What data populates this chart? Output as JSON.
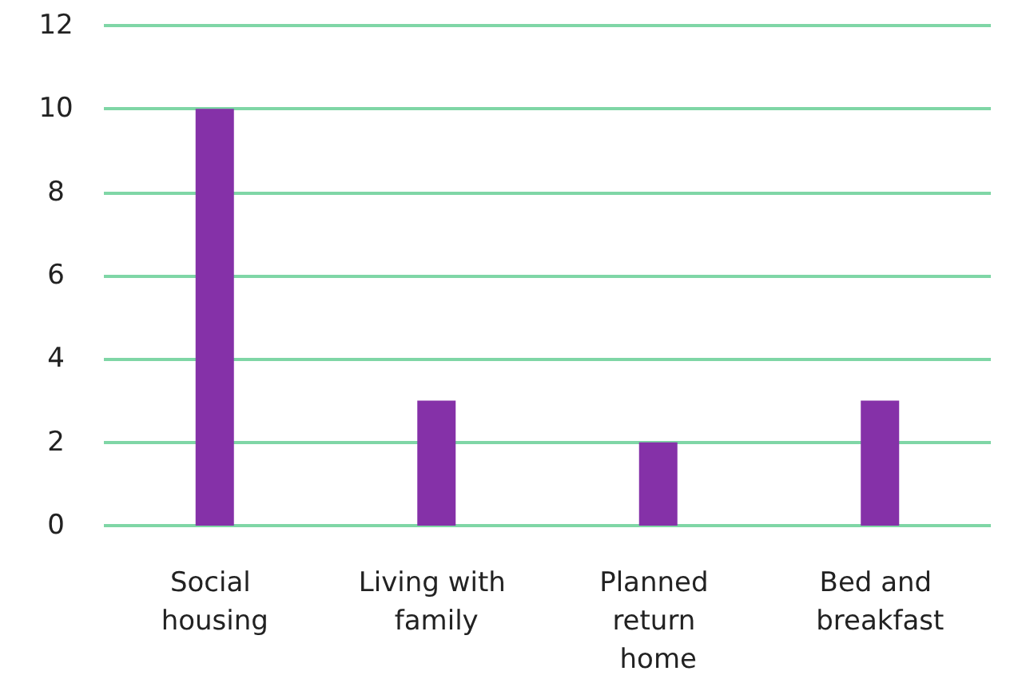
{
  "chart_data": {
    "type": "bar",
    "categories": [
      "Social housing",
      "Living with family",
      "Planned return home",
      "Bed and breakfast"
    ],
    "values": [
      10,
      3,
      2,
      3
    ],
    "color": "#8531a8",
    "ylim": [
      0,
      12
    ],
    "yticks": [
      0,
      2,
      4,
      6,
      8,
      10,
      12
    ],
    "grid": "y"
  }
}
